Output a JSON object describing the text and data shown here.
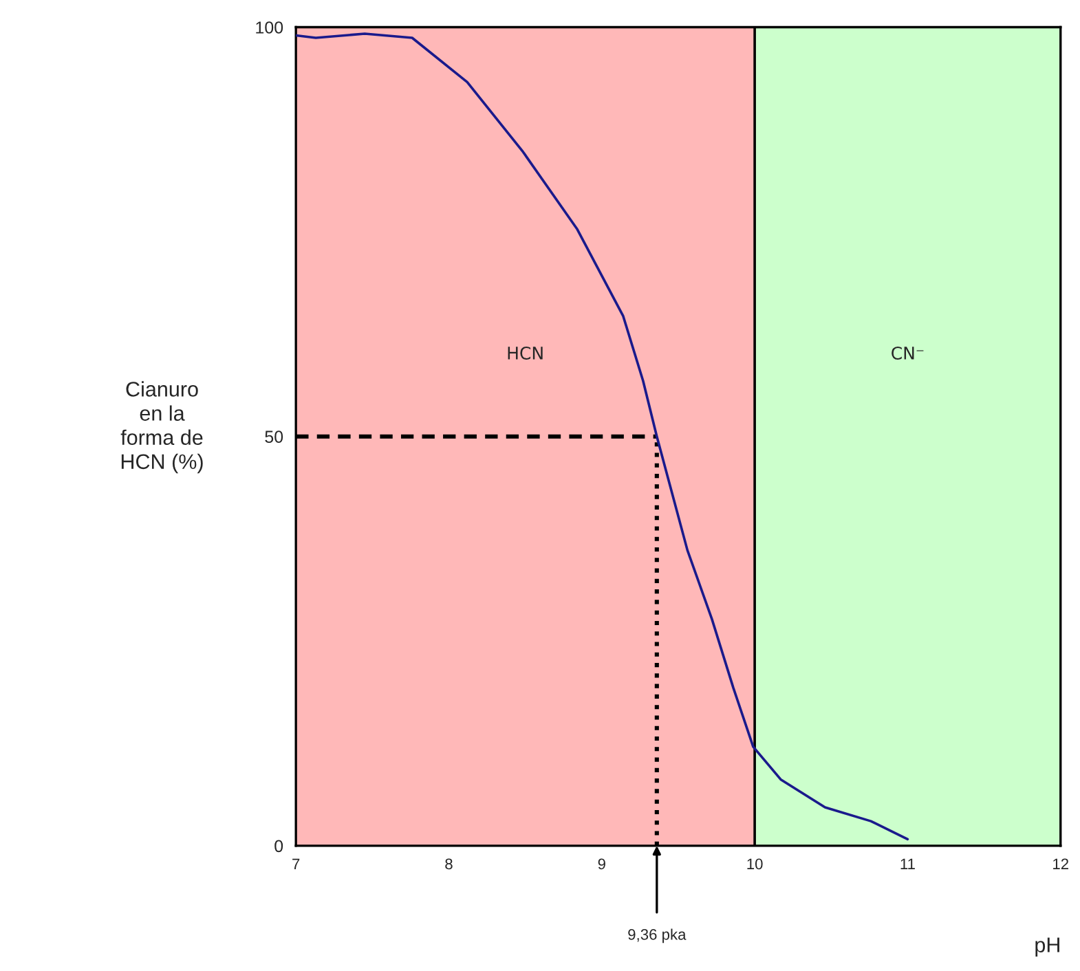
{
  "chart_data": {
    "type": "line",
    "ylabel": "Cianuro\nen la\nforma de\nHCN (%)",
    "xlabel": "pH",
    "x": [
      7,
      7.13,
      7.45,
      7.76,
      8.12,
      8.48,
      8.84,
      9.14,
      9.27,
      9.36,
      9.56,
      9.72,
      9.86,
      9.99,
      10.17,
      10.46,
      10.76,
      11
    ],
    "series": [
      {
        "color": "#1a1a8c",
        "values": [
          99,
          98.7,
          99.2,
          98.7,
          93.3,
          84.9,
          75.3,
          64.7,
          56.8,
          50,
          36.1,
          27.7,
          19.3,
          12.1,
          8.1,
          4.7,
          3.0,
          0.8
        ]
      }
    ],
    "xlim": [
      7,
      12
    ],
    "ylim": [
      0,
      100
    ],
    "xticks": [
      7,
      8,
      9,
      10,
      11,
      12
    ],
    "yticks": [
      0,
      50,
      100
    ],
    "grid": false,
    "legend": false,
    "marker": "none",
    "line_style": "solid",
    "bands": [
      {
        "axis": "x",
        "from": 7,
        "to": 10,
        "label": "HCN",
        "color": "#ffb8b8"
      },
      {
        "axis": "x",
        "from": 10,
        "to": 12,
        "label": "CN⁻",
        "color": "#ccffcc"
      }
    ],
    "ref_lines": [
      {
        "axis": "x",
        "value": 10,
        "label": null,
        "color": "#000000",
        "line_style": "solid"
      },
      {
        "axis": "y",
        "value": 50,
        "label": null,
        "color": "#000000",
        "line_style": "dashed"
      },
      {
        "axis": "x",
        "value": 9.36,
        "label": null,
        "color": "#000000",
        "line_style": "dotted"
      }
    ],
    "annotations": [
      {
        "text": "9,36 pka",
        "x": 9.36,
        "y": 0
      }
    ]
  }
}
